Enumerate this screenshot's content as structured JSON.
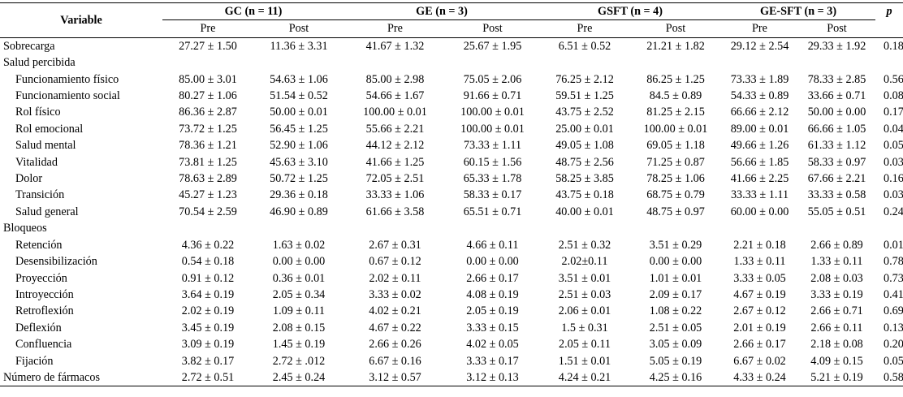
{
  "header": {
    "variable": "Variable",
    "p": "p",
    "groups": [
      "GC (n = 11)",
      "GE (n = 3)",
      "GSFT (n = 4)",
      "GE-SFT (n = 3)"
    ],
    "pre": "Pre",
    "post": "Post"
  },
  "rows": [
    {
      "label": "Sobrecarga",
      "indent": false,
      "values": [
        "27.27 ± 1.50",
        "11.36 ± 3.31",
        "41.67 ± 1.32",
        "25.67 ± 1.95",
        "6.51 ± 0.52",
        "21.21 ± 1.82",
        "29.12 ± 2.54",
        "29.33 ± 1.92"
      ],
      "p": "0.18"
    },
    {
      "label": "Salud percibida",
      "indent": false,
      "values": [
        "",
        "",
        "",
        "",
        "",
        "",
        "",
        ""
      ],
      "p": ""
    },
    {
      "label": "Funcionamiento físico",
      "indent": true,
      "values": [
        "85.00 ± 3.01",
        "54.63 ± 1.06",
        "85.00 ± 2.98",
        "75.05 ± 2.06",
        "76.25 ± 2.12",
        "86.25 ± 1.25",
        "73.33 ± 1.89",
        "78.33 ± 2.85"
      ],
      "p": "0.56"
    },
    {
      "label": "Funcionamiento social",
      "indent": true,
      "values": [
        "80.27 ± 1.06",
        "51.54 ± 0.52",
        "54.66 ± 1.67",
        "91.66 ± 0.71",
        "59.51 ± 1.25",
        "84.5 ± 0.89",
        "54.33 ± 0.89",
        "33.66 ± 0.71"
      ],
      "p": "0.08"
    },
    {
      "label": "Rol físico",
      "indent": true,
      "values": [
        "86.36 ± 2.87",
        "50.00 ± 0.01",
        "100.00 ± 0.01",
        "100.00 ± 0.01",
        "43.75 ± 2.52",
        "81.25 ± 2.15",
        "66.66 ± 2.12",
        "50.00 ± 0.00"
      ],
      "p": "0.17"
    },
    {
      "label": "Rol emocional",
      "indent": true,
      "values": [
        "73.72 ± 1.25",
        "56.45 ± 1.25",
        "55.66 ± 2.21",
        "100.00 ± 0.01",
        "25.00 ± 0.01",
        "100.00 ± 0.01",
        "89.00 ± 0.01",
        "66.66 ± 1.05"
      ],
      "p": "0.04*"
    },
    {
      "label": "Salud mental",
      "indent": true,
      "values": [
        "78.36 ± 1.21",
        "52.90 ± 1.06",
        "44.12 ± 2.12",
        "73.33 ± 1.11",
        "49.05 ± 1.08",
        "69.05 ± 1.18",
        "49.66 ± 1.26",
        "61.33 ± 1.12"
      ],
      "p": "0.05"
    },
    {
      "label": "Vitalidad",
      "indent": true,
      "values": [
        "73.81 ± 1.25",
        "45.63 ± 3.10",
        "41.66 ± 1.25",
        "60.15 ± 1.56",
        "48.75 ± 2.56",
        "71.25 ± 0.87",
        "56.66 ± 1.85",
        "58.33 ± 0.97"
      ],
      "p": "0.03*"
    },
    {
      "label": "Dolor",
      "indent": true,
      "values": [
        "78.63 ± 2.89",
        "50.72 ± 1.25",
        "72.05 ± 2.51",
        "65.33 ± 1.78",
        "58.25 ± 3.85",
        "78.25 ± 1.06",
        "41.66 ± 2.25",
        "67.66 ± 2.21"
      ],
      "p": "0.16"
    },
    {
      "label": "Transición",
      "indent": true,
      "values": [
        "45.27 ± 1.23",
        "29.36 ± 0.18",
        "33.33 ± 1.06",
        "58.33 ± 0.17",
        "43.75 ± 0.18",
        "68.75 ± 0.79",
        "33.33 ± 1.11",
        "33.33 ± 0.58"
      ],
      "p": "0.03*"
    },
    {
      "label": "Salud general",
      "indent": true,
      "values": [
        "70.54 ± 2.59",
        "46.90 ± 0.89",
        "61.66 ± 3.58",
        "65.51 ± 0.71",
        "40.00 ± 0.01",
        "48.75 ± 0.97",
        "60.00 ± 0.00",
        "55.05 ± 0.51"
      ],
      "p": "0.24"
    },
    {
      "label": "Bloqueos",
      "indent": false,
      "values": [
        "",
        "",
        "",
        "",
        "",
        "",
        "",
        ""
      ],
      "p": ""
    },
    {
      "label": "Retención",
      "indent": true,
      "values": [
        "4.36 ± 0.22",
        "1.63 ± 0.02",
        "2.67 ± 0.31",
        "4.66 ± 0.11",
        "2.51 ± 0.32",
        "3.51 ± 0.29",
        "2.21 ± 0.18",
        "2.66 ± 0.89"
      ],
      "p": "0.01*"
    },
    {
      "label": "Desensibilización",
      "indent": true,
      "values": [
        "0.54 ± 0.18",
        "0.00 ±  0.00",
        "0.67 ± 0.12",
        "0.00 ± 0.00",
        "2.02±0.11",
        "0.00 ± 0.00",
        "1.33 ± 0.11",
        "1.33 ± 0.11"
      ],
      "p": "0.78"
    },
    {
      "label": "Proyección",
      "indent": true,
      "values": [
        "0.91 ± 0.12",
        "0.36 ± 0.01",
        "2.02 ± 0.11",
        "2.66 ± 0.17",
        "3.51 ± 0.01",
        "1.01 ± 0.01",
        "3.33 ± 0.05",
        "2.08 ± 0.03"
      ],
      "p": "0.73"
    },
    {
      "label": "Introyección",
      "indent": true,
      "values": [
        "3.64 ± 0.19",
        "2.05 ± 0.34",
        "3.33 ± 0.02",
        "4.08 ± 0.19",
        "2.51 ± 0.03",
        "2.09 ± 0.17",
        "4.67 ± 0.19",
        "3.33 ± 0.19"
      ],
      "p": "0.41"
    },
    {
      "label": "Retroflexión",
      "indent": true,
      "values": [
        "2.02 ± 0.19",
        "1.09 ± 0.11",
        "4.02 ± 0.21",
        "2.05 ± 0.19",
        "2.06 ± 0.01",
        "1.08 ± 0.22",
        "2.67 ± 0.12",
        "2.66 ± 0.71"
      ],
      "p": "0.69"
    },
    {
      "label": "Deflexión",
      "indent": true,
      "values": [
        "3.45 ± 0.19",
        "2.08 ± 0.15",
        "4.67 ± 0.22",
        "3.33 ± 0.15",
        "1.5 ± 0.31",
        "2.51 ± 0.05",
        "2.01 ± 0.19",
        "2.66 ± 0.11"
      ],
      "p": "0.13"
    },
    {
      "label": "Confluencia",
      "indent": true,
      "values": [
        "3.09 ± 0.19",
        "1.45 ± 0.19",
        "2.66 ± 0.26",
        "4.02 ± 0.05",
        "2.05 ± 0.11",
        "3.05 ± 0.09",
        "2.66 ± 0.17",
        "2.18 ± 0.08"
      ],
      "p": "0.20"
    },
    {
      "label": "Fijación",
      "indent": true,
      "values": [
        "3.82 ± 0.17",
        "2.72 ± .012",
        "6.67 ± 0.16",
        "3.33 ± 0.17",
        "1.51 ± 0.01",
        "5.05 ± 0.19",
        "6.67 ± 0.02",
        "4.09 ± 0.15"
      ],
      "p": "0.05"
    },
    {
      "label": "Número de fármacos",
      "indent": false,
      "values": [
        "2.72 ± 0.51",
        "2.45 ± 0.24",
        "3.12 ± 0.57",
        "3.12 ± 0.13",
        "4.24 ± 0.21",
        "4.25 ± 0.16",
        "4.33 ± 0.24",
        "5.21 ± 0.19"
      ],
      "p": "0.58"
    }
  ]
}
